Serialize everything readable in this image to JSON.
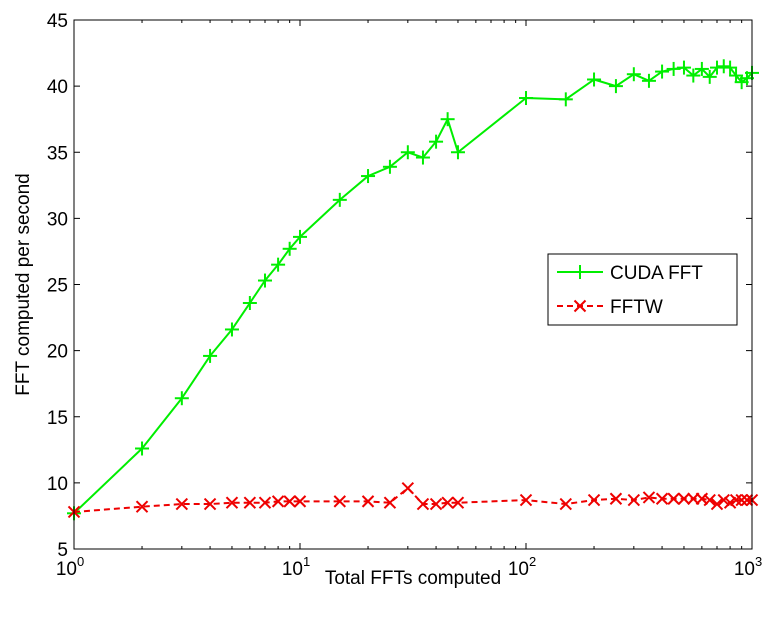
{
  "chart_data": {
    "type": "line",
    "title": "",
    "xlabel": "Total FFTs computed",
    "ylabel": "FFT computed per second",
    "xscale": "log",
    "xlim": [
      1,
      1000
    ],
    "ylim": [
      5,
      45
    ],
    "x_ticks": [
      {
        "base": "10",
        "exp": "0",
        "value": 1
      },
      {
        "base": "10",
        "exp": "1",
        "value": 10
      },
      {
        "base": "10",
        "exp": "2",
        "value": 100
      },
      {
        "base": "10",
        "exp": "3",
        "value": 1000
      }
    ],
    "y_ticks": [
      "5",
      "10",
      "15",
      "20",
      "25",
      "30",
      "35",
      "40",
      "45"
    ],
    "grid": false,
    "legend_position": "right-center",
    "series": [
      {
        "name": "CUDA FFT",
        "color": "#00ee00",
        "line_style": "solid",
        "marker": "plus",
        "x": [
          1,
          2,
          3,
          4,
          5,
          6,
          7,
          8,
          9,
          10,
          15,
          20,
          25,
          30,
          35,
          40,
          45,
          50,
          100,
          150,
          200,
          250,
          300,
          350,
          400,
          450,
          500,
          550,
          600,
          650,
          700,
          750,
          800,
          850,
          900,
          950,
          1000
        ],
        "y": [
          7.7,
          12.6,
          16.4,
          19.6,
          21.6,
          23.6,
          25.3,
          26.5,
          27.7,
          28.6,
          31.4,
          33.2,
          33.9,
          35.0,
          34.6,
          35.8,
          37.5,
          35.0,
          39.1,
          39.0,
          40.5,
          40.0,
          40.9,
          40.4,
          41.1,
          41.3,
          41.4,
          40.8,
          41.3,
          40.7,
          41.4,
          41.5,
          41.4,
          40.8,
          40.3,
          40.6,
          41.0
        ]
      },
      {
        "name": "FFTW",
        "color": "#ee0000",
        "line_style": "dashed",
        "marker": "x",
        "x": [
          1,
          2,
          3,
          4,
          5,
          6,
          7,
          8,
          9,
          10,
          15,
          20,
          25,
          30,
          35,
          40,
          45,
          50,
          100,
          150,
          200,
          250,
          300,
          350,
          400,
          450,
          500,
          550,
          600,
          650,
          700,
          750,
          800,
          850,
          900,
          950,
          1000
        ],
        "y": [
          7.8,
          8.2,
          8.4,
          8.4,
          8.5,
          8.5,
          8.5,
          8.6,
          8.6,
          8.6,
          8.6,
          8.6,
          8.5,
          9.6,
          8.4,
          8.4,
          8.5,
          8.5,
          8.7,
          8.4,
          8.7,
          8.8,
          8.7,
          8.9,
          8.8,
          8.8,
          8.8,
          8.8,
          8.8,
          8.7,
          8.4,
          8.7,
          8.5,
          8.7,
          8.7,
          8.7,
          8.7
        ]
      }
    ]
  }
}
